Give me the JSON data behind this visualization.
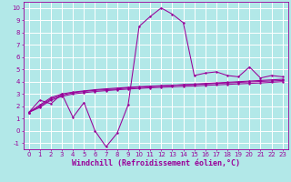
{
  "xlabel": "Windchill (Refroidissement éolien,°C)",
  "bg_color": "#b2e8e8",
  "grid_color": "#ffffff",
  "line_color": "#990099",
  "xlim": [
    -0.5,
    23.5
  ],
  "ylim": [
    -1.5,
    10.5
  ],
  "xticks": [
    0,
    1,
    2,
    3,
    4,
    5,
    6,
    7,
    8,
    9,
    10,
    11,
    12,
    13,
    14,
    15,
    16,
    17,
    18,
    19,
    20,
    21,
    22,
    23
  ],
  "yticks": [
    -1,
    0,
    1,
    2,
    3,
    4,
    5,
    6,
    7,
    8,
    9,
    10
  ],
  "series1_x": [
    0,
    1,
    2,
    3,
    4,
    5,
    6,
    7,
    8,
    9,
    10,
    11,
    12,
    13,
    14,
    15,
    16,
    17,
    18,
    19,
    20,
    21,
    22,
    23
  ],
  "series1_y": [
    1.5,
    2.5,
    2.2,
    3.0,
    1.1,
    2.3,
    0.0,
    -1.3,
    -0.2,
    2.1,
    8.5,
    9.3,
    10.0,
    9.5,
    8.8,
    4.5,
    4.7,
    4.8,
    4.5,
    4.4,
    5.2,
    4.3,
    4.5,
    4.4
  ],
  "series2_x": [
    0,
    1,
    2,
    3,
    4,
    5,
    6,
    7,
    8,
    9,
    10,
    11,
    12,
    13,
    14,
    15,
    16,
    17,
    18,
    19,
    20,
    21,
    22,
    23
  ],
  "series2_y": [
    1.5,
    2.0,
    2.6,
    2.9,
    3.1,
    3.2,
    3.3,
    3.35,
    3.4,
    3.5,
    3.55,
    3.6,
    3.65,
    3.7,
    3.75,
    3.8,
    3.85,
    3.9,
    3.95,
    4.0,
    4.05,
    4.1,
    4.15,
    4.2
  ],
  "series3_x": [
    0,
    1,
    2,
    3,
    4,
    5,
    6,
    7,
    8,
    9,
    10,
    11,
    12,
    13,
    14,
    15,
    16,
    17,
    18,
    19,
    20,
    21,
    22,
    23
  ],
  "series3_y": [
    1.5,
    2.1,
    2.7,
    3.0,
    3.15,
    3.25,
    3.35,
    3.42,
    3.48,
    3.54,
    3.59,
    3.63,
    3.67,
    3.71,
    3.74,
    3.77,
    3.82,
    3.86,
    3.9,
    3.94,
    3.98,
    4.02,
    4.06,
    4.1
  ],
  "series4_x": [
    0,
    1,
    2,
    3,
    4,
    5,
    6,
    7,
    8,
    9,
    10,
    11,
    12,
    13,
    14,
    15,
    16,
    17,
    18,
    19,
    20,
    21,
    22,
    23
  ],
  "series4_y": [
    1.5,
    1.9,
    2.5,
    2.8,
    3.0,
    3.1,
    3.2,
    3.27,
    3.34,
    3.4,
    3.45,
    3.5,
    3.54,
    3.58,
    3.62,
    3.65,
    3.7,
    3.74,
    3.78,
    3.82,
    3.86,
    3.9,
    3.95,
    4.0
  ],
  "tick_fontsize": 5.0,
  "label_fontsize": 6.0
}
